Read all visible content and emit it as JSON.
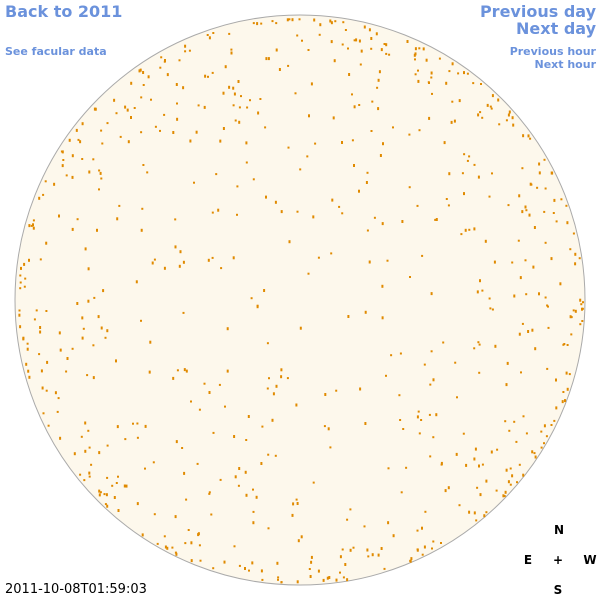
{
  "navigation": {
    "back": "Back to 2011",
    "facular": "See facular data",
    "previous_day": "Previous day",
    "next_day": "Next day",
    "previous_hour": "Previous hour",
    "next_hour": "Next hour"
  },
  "compass": {
    "north": "N",
    "east": "E",
    "center": "+",
    "west": "W",
    "south": "S"
  },
  "timestamp": "2011-10-08T01:59:03"
}
